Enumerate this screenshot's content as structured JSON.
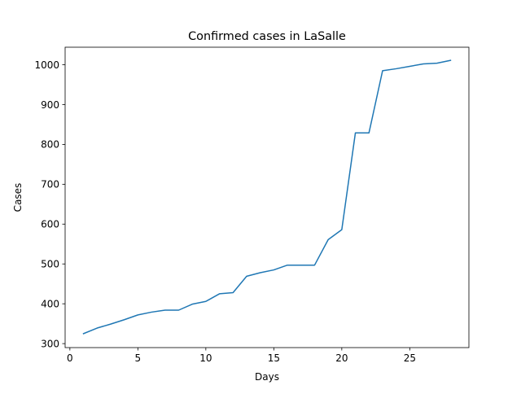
{
  "chart_data": {
    "type": "line",
    "title": "Confirmed cases in LaSalle",
    "xlabel": "Days",
    "ylabel": "Cases",
    "xlim": [
      -0.35,
      29.35
    ],
    "ylim": [
      290,
      1044
    ],
    "xticks": [
      0,
      5,
      10,
      15,
      20,
      25
    ],
    "yticks": [
      300,
      400,
      500,
      600,
      700,
      800,
      900,
      1000
    ],
    "grid": false,
    "line_color": "#1f77b4",
    "series": [
      {
        "x": [
          1,
          2,
          3,
          4,
          5,
          6,
          7,
          8,
          9,
          10,
          11,
          12,
          13,
          14,
          15,
          16,
          17,
          18,
          19,
          20,
          21,
          22,
          23,
          24,
          25,
          26,
          27,
          28
        ],
        "values": [
          325,
          339,
          349,
          360,
          372,
          379,
          384,
          384,
          399,
          406,
          425,
          428,
          469,
          478,
          485,
          497,
          497,
          497,
          561,
          586,
          829,
          829,
          985,
          990,
          996,
          1002,
          1004,
          1011
        ]
      }
    ]
  }
}
